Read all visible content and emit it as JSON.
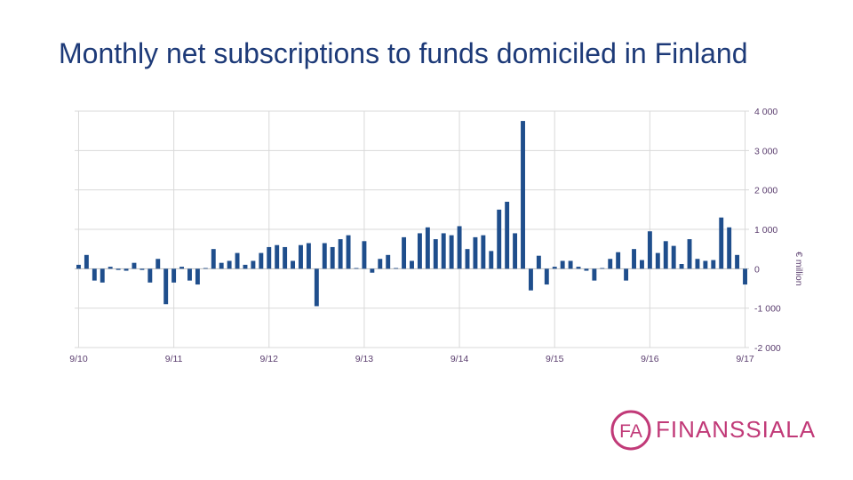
{
  "title": "Monthly net subscriptions to funds domiciled in Finland",
  "logo": {
    "mark": "FA",
    "name": "FINANSSIALA"
  },
  "colors": {
    "bar": "#1f4e8c",
    "grid": "#d9d9d9",
    "axis_text": "#5a3d6e",
    "brand": "#c13a78",
    "title": "#1d3a78"
  },
  "chart_data": {
    "type": "bar",
    "title": "Monthly net subscriptions to funds domiciled in Finland",
    "ylabel": "€ million",
    "ylim": [
      -2000,
      4000
    ],
    "yticks": [
      4000,
      3000,
      2000,
      1000,
      0,
      -1000,
      -2000
    ],
    "ytick_labels": [
      "4 000",
      "3 000",
      "2 000",
      "1 000",
      "0",
      "-1 000",
      "-2 000"
    ],
    "xtick_labels": [
      "9/10",
      "9/11",
      "9/12",
      "9/13",
      "9/14",
      "9/15",
      "9/16",
      "9/17"
    ],
    "grid": true,
    "legend": "none",
    "y_axis_position": "right",
    "categories": [
      "9/10",
      "10/10",
      "11/10",
      "12/10",
      "1/11",
      "2/11",
      "3/11",
      "4/11",
      "5/11",
      "6/11",
      "7/11",
      "8/11",
      "9/11",
      "10/11",
      "11/11",
      "12/11",
      "1/12",
      "2/12",
      "3/12",
      "4/12",
      "5/12",
      "6/12",
      "7/12",
      "8/12",
      "9/12",
      "10/12",
      "11/12",
      "12/12",
      "1/13",
      "2/13",
      "3/13",
      "4/13",
      "5/13",
      "6/13",
      "7/13",
      "8/13",
      "9/13",
      "10/13",
      "11/13",
      "12/13",
      "1/14",
      "2/14",
      "3/14",
      "4/14",
      "5/14",
      "6/14",
      "7/14",
      "8/14",
      "9/14",
      "10/14",
      "11/14",
      "12/14",
      "1/15",
      "2/15",
      "3/15",
      "4/15",
      "5/15",
      "6/15",
      "7/15",
      "8/15",
      "9/15",
      "10/15",
      "11/15",
      "12/15",
      "1/16",
      "2/16",
      "3/16",
      "4/16",
      "5/16",
      "6/16",
      "7/16",
      "8/16",
      "9/16",
      "10/16",
      "11/16",
      "12/16",
      "1/17",
      "2/17",
      "3/17",
      "4/17",
      "5/17",
      "6/17",
      "7/17",
      "8/17",
      "9/17"
    ],
    "values": [
      100,
      350,
      -300,
      -350,
      50,
      -30,
      -50,
      150,
      -30,
      -350,
      250,
      -900,
      -350,
      50,
      -300,
      -400,
      0,
      500,
      150,
      200,
      400,
      100,
      200,
      400,
      550,
      600,
      550,
      200,
      600,
      650,
      -950,
      650,
      550,
      750,
      850,
      0,
      700,
      -100,
      250,
      350,
      0,
      800,
      200,
      900,
      1050,
      750,
      900,
      850,
      1080,
      500,
      800,
      850,
      450,
      1500,
      1700,
      900,
      3750,
      -550,
      330,
      -400,
      50,
      200,
      200,
      50,
      -50,
      -300,
      0,
      250,
      420,
      -300,
      500,
      220,
      950,
      400,
      700,
      580,
      120,
      750,
      250,
      200,
      220,
      1300,
      1050,
      350,
      -400
    ]
  }
}
